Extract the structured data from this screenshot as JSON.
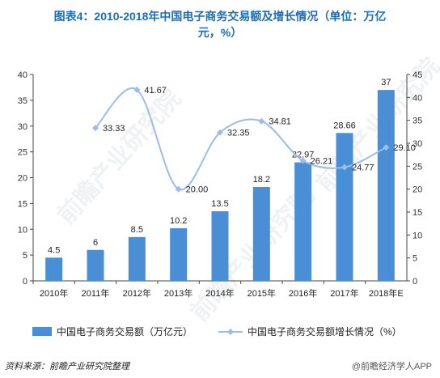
{
  "title_line1": "图表4：2010-2018年中国电子商务交易额及增长情况（单位：万亿",
  "title_line2": "元，%）",
  "source": "资料来源：前瞻产业研究院整理",
  "brand": "@前瞻经济学人APP",
  "watermark": "前瞻产业研究院",
  "colors": {
    "bar": "#4a8fd6",
    "line": "#9cbde6",
    "title": "#1f6db4"
  },
  "chart_data": {
    "type": "bar",
    "categories": [
      "2010年",
      "2011年",
      "2012年",
      "2013年",
      "2014年",
      "2015年",
      "2016年",
      "2017年",
      "2018年E"
    ],
    "y_left": {
      "min": 0,
      "max": 40,
      "ticks": [
        0,
        5,
        10,
        15,
        20,
        25,
        30,
        35,
        40
      ]
    },
    "y_right": {
      "min": 0,
      "max": 45,
      "ticks": [
        0,
        5,
        10,
        15,
        20,
        25,
        30,
        35,
        40,
        45
      ]
    },
    "series": [
      {
        "name": "中国电子商务交易额（万亿元）",
        "type": "bar",
        "axis": "left",
        "values": [
          4.5,
          6,
          8.5,
          10.2,
          13.5,
          18.2,
          22.97,
          28.66,
          37
        ],
        "labels": [
          "4.5",
          "6",
          "8.5",
          "10.2",
          "13.5",
          "18.2",
          "22.97",
          "28.66",
          "37"
        ]
      },
      {
        "name": "中国电子商务交易额增长情况（%）",
        "type": "line",
        "axis": "right",
        "values": [
          null,
          33.33,
          41.67,
          20.0,
          32.35,
          34.81,
          26.21,
          24.77,
          29.1
        ],
        "labels": [
          null,
          "33.33",
          "41.67",
          "20.00",
          "32.35",
          "34.81",
          "26.21",
          "24.77",
          "29.10"
        ]
      }
    ],
    "legend": "bottom",
    "grid": false
  }
}
